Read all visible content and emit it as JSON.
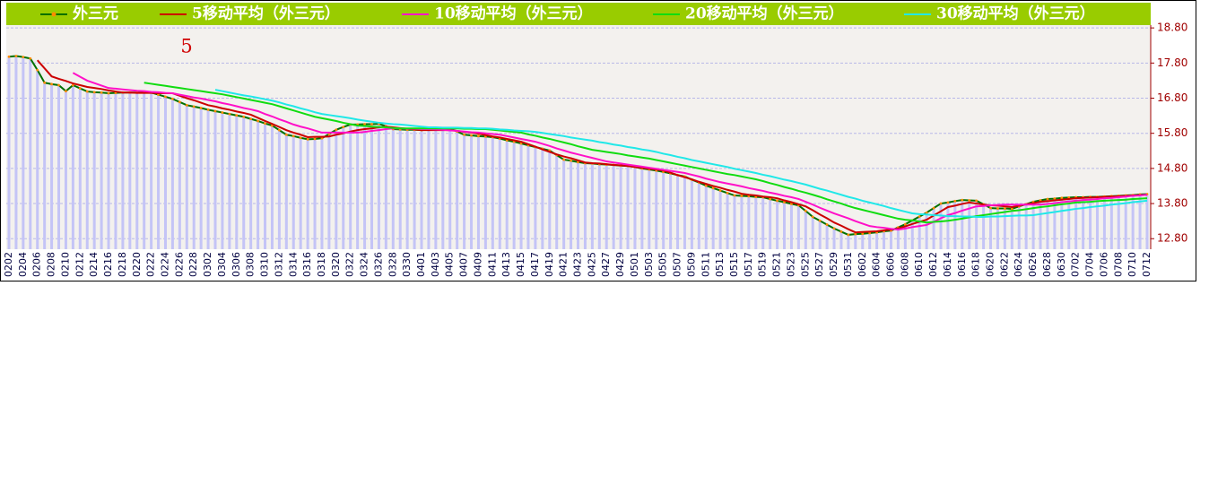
{
  "chart_data": {
    "type": "line",
    "annotation": "5",
    "categories": [
      "0202",
      null,
      "0204",
      null,
      "0206",
      null,
      "0208",
      null,
      "0210",
      null,
      "0212",
      null,
      "0214",
      null,
      "0216",
      null,
      "0218",
      null,
      "0220",
      null,
      "0222",
      null,
      "0224",
      null,
      "0226",
      null,
      "0228",
      null,
      "0302",
      null,
      "0304",
      null,
      "0306",
      null,
      "0308",
      null,
      "0310",
      null,
      "0312",
      null,
      "0314",
      null,
      "0316",
      null,
      "0318",
      null,
      "0320",
      null,
      "0322",
      null,
      "0324",
      null,
      "0326",
      null,
      "0328",
      null,
      "0330",
      null,
      "0401",
      null,
      "0403",
      null,
      "0405",
      null,
      "0407",
      null,
      "0409",
      null,
      "0411",
      null,
      "0413",
      null,
      "0415",
      null,
      "0417",
      null,
      "0419",
      null,
      "0421",
      null,
      "0423",
      null,
      "0425",
      null,
      "0427",
      null,
      "0429",
      null,
      "0501",
      null,
      "0503",
      null,
      "0505",
      null,
      "0507",
      null,
      "0509",
      null,
      "0511",
      null,
      "0513",
      null,
      "0515",
      null,
      "0517",
      null,
      "0519",
      null,
      "0521",
      null,
      "0523",
      null,
      "0525",
      null,
      "0527",
      null,
      "0529",
      null,
      "0531",
      null,
      "0602",
      null,
      "0604",
      null,
      "0606",
      null,
      "0608",
      null,
      "0610",
      null,
      "0612",
      null,
      "0614",
      null,
      "0616",
      null,
      "0618",
      null,
      "0620",
      null,
      "0622",
      null,
      "0624",
      null,
      "0626",
      null,
      "0628",
      null,
      "0630",
      null,
      "0702",
      null,
      "0704",
      null,
      "0706",
      null,
      "0708",
      null,
      "0710",
      null,
      "0712"
    ],
    "series": [
      {
        "name": "外三元",
        "color": "#007000",
        "marker_color": "#ff8c00",
        "bar_color": "#c4c4f6",
        "values": [
          17.98,
          18.0,
          17.97,
          17.93,
          17.6,
          17.24,
          17.2,
          17.17,
          17.0,
          17.17,
          17.08,
          16.99,
          16.97,
          16.96,
          16.94,
          16.95,
          16.96,
          16.96,
          16.96,
          16.96,
          16.96,
          16.9,
          16.84,
          16.78,
          16.69,
          16.6,
          16.56,
          16.52,
          16.47,
          16.43,
          16.39,
          16.35,
          16.31,
          16.27,
          16.21,
          16.15,
          16.08,
          16.02,
          15.89,
          15.76,
          15.72,
          15.67,
          15.63,
          15.64,
          15.66,
          15.78,
          15.9,
          15.98,
          16.05,
          16.05,
          16.06,
          16.06,
          16.07,
          16.0,
          15.92,
          15.91,
          15.9,
          15.9,
          15.89,
          15.9,
          15.91,
          15.93,
          15.94,
          15.85,
          15.76,
          15.74,
          15.72,
          15.71,
          15.69,
          15.65,
          15.6,
          15.56,
          15.51,
          15.46,
          15.41,
          15.36,
          15.31,
          15.18,
          15.05,
          15.02,
          14.98,
          14.95,
          14.94,
          14.92,
          14.91,
          14.9,
          14.88,
          14.87,
          14.84,
          14.8,
          14.77,
          14.74,
          14.7,
          14.66,
          14.61,
          14.57,
          14.48,
          14.4,
          14.31,
          14.24,
          14.17,
          14.1,
          14.03,
          14.02,
          14.01,
          13.99,
          13.98,
          13.93,
          13.88,
          13.84,
          13.79,
          13.75,
          13.59,
          13.42,
          13.31,
          13.2,
          13.09,
          13.0,
          12.91,
          12.93,
          12.94,
          12.96,
          12.98,
          13.01,
          13.03,
          13.12,
          13.21,
          13.32,
          13.43,
          13.54,
          13.67,
          13.8,
          13.83,
          13.87,
          13.9,
          13.89,
          13.88,
          13.78,
          13.67,
          13.66,
          13.66,
          13.65,
          13.72,
          13.78,
          13.85,
          13.89,
          13.93,
          13.94,
          13.96,
          13.97,
          13.98,
          13.98,
          13.99,
          13.99,
          14.0,
          14.01,
          14.02,
          14.03,
          14.04,
          14.06,
          14.07
        ]
      },
      {
        "name": "5移动平均（外三元）",
        "color": "#cc0000",
        "values": [
          null,
          null,
          null,
          null,
          17.88,
          17.65,
          17.42,
          17.35,
          17.29,
          17.22,
          17.17,
          17.12,
          17.09,
          17.06,
          17.02,
          16.99,
          16.96,
          16.96,
          16.95,
          16.95,
          16.95,
          16.94,
          16.94,
          16.94,
          16.87,
          16.8,
          16.74,
          16.67,
          16.6,
          16.56,
          16.51,
          16.47,
          16.42,
          16.38,
          16.33,
          16.24,
          16.15,
          16.07,
          15.98,
          15.89,
          15.82,
          15.76,
          15.69,
          15.7,
          15.7,
          15.71,
          15.76,
          15.8,
          15.85,
          15.89,
          15.92,
          15.94,
          15.97,
          15.99,
          15.97,
          15.95,
          15.93,
          15.91,
          15.89,
          15.89,
          15.89,
          15.89,
          15.89,
          15.87,
          15.84,
          15.82,
          15.79,
          15.75,
          15.71,
          15.68,
          15.64,
          15.6,
          15.56,
          15.49,
          15.42,
          15.34,
          15.27,
          15.2,
          15.14,
          15.09,
          15.03,
          14.97,
          14.95,
          14.94,
          14.92,
          14.9,
          14.89,
          14.87,
          14.84,
          14.82,
          14.79,
          14.77,
          14.74,
          14.68,
          14.61,
          14.55,
          14.49,
          14.42,
          14.36,
          14.3,
          14.25,
          14.19,
          14.14,
          14.08,
          14.05,
          14.03,
          14.0,
          13.98,
          13.95,
          13.89,
          13.84,
          13.78,
          13.72,
          13.61,
          13.49,
          13.38,
          13.26,
          13.17,
          13.07,
          12.98,
          12.99,
          13.0,
          13.01,
          13.04,
          13.06,
          13.09,
          13.15,
          13.22,
          13.28,
          13.34,
          13.46,
          13.58,
          13.7,
          13.74,
          13.79,
          13.83,
          13.8,
          13.77,
          13.75,
          13.74,
          13.72,
          13.7,
          13.74,
          13.78,
          13.81,
          13.85,
          13.87,
          13.89,
          13.91,
          13.93,
          13.95,
          13.96,
          13.97,
          13.98,
          13.99,
          14.0,
          14.01,
          14.02,
          14.03,
          14.04,
          14.05
        ]
      },
      {
        "name": "10移动平均（外三元）",
        "color": "#ff10c8",
        "values": [
          null,
          null,
          null,
          null,
          null,
          null,
          null,
          null,
          null,
          17.52,
          17.41,
          17.3,
          17.23,
          17.16,
          17.09,
          17.07,
          17.05,
          17.03,
          17.01,
          17.0,
          16.98,
          16.97,
          16.95,
          16.94,
          16.9,
          16.86,
          16.82,
          16.79,
          16.75,
          16.71,
          16.66,
          16.62,
          16.57,
          16.52,
          16.48,
          16.43,
          16.35,
          16.28,
          16.2,
          16.13,
          16.05,
          15.99,
          15.94,
          15.88,
          15.82,
          15.82,
          15.82,
          15.82,
          15.82,
          15.82,
          15.84,
          15.87,
          15.89,
          15.92,
          15.94,
          15.94,
          15.93,
          15.93,
          15.92,
          15.92,
          15.91,
          15.9,
          15.88,
          15.87,
          15.85,
          15.83,
          15.82,
          15.8,
          15.78,
          15.76,
          15.72,
          15.68,
          15.64,
          15.6,
          15.56,
          15.5,
          15.44,
          15.37,
          15.31,
          15.25,
          15.2,
          15.15,
          15.1,
          15.05,
          15.0,
          14.97,
          14.94,
          14.91,
          14.88,
          14.85,
          14.82,
          14.79,
          14.76,
          14.73,
          14.7,
          14.67,
          14.62,
          14.57,
          14.51,
          14.46,
          14.41,
          14.37,
          14.33,
          14.29,
          14.24,
          14.2,
          14.16,
          14.11,
          14.07,
          14.02,
          13.98,
          13.93,
          13.85,
          13.77,
          13.68,
          13.6,
          13.52,
          13.45,
          13.38,
          13.3,
          13.23,
          13.16,
          13.13,
          13.11,
          13.08,
          13.06,
          13.09,
          13.13,
          13.16,
          13.19,
          13.28,
          13.38,
          13.47,
          13.53,
          13.6,
          13.66,
          13.72,
          13.73,
          13.75,
          13.76,
          13.77,
          13.77,
          13.77,
          13.77,
          13.77,
          13.77,
          13.79,
          13.81,
          13.84,
          13.86,
          13.88,
          13.9,
          13.91,
          13.93,
          13.95,
          13.96,
          13.98,
          14.0,
          14.02,
          14.03,
          14.05
        ]
      },
      {
        "name": "20移动平均（外三元）",
        "color": "#10dc10",
        "values": [
          null,
          null,
          null,
          null,
          null,
          null,
          null,
          null,
          null,
          null,
          null,
          null,
          null,
          null,
          null,
          null,
          null,
          null,
          null,
          17.24,
          17.21,
          17.18,
          17.15,
          17.12,
          17.09,
          17.06,
          17.03,
          17.0,
          16.97,
          16.94,
          16.91,
          16.87,
          16.83,
          16.79,
          16.75,
          16.71,
          16.67,
          16.63,
          16.57,
          16.51,
          16.45,
          16.39,
          16.33,
          16.27,
          16.23,
          16.19,
          16.15,
          16.1,
          16.06,
          16.02,
          16.01,
          15.99,
          15.98,
          15.97,
          15.95,
          15.94,
          15.94,
          15.94,
          15.94,
          15.94,
          15.94,
          15.94,
          15.94,
          15.94,
          15.93,
          15.93,
          15.92,
          15.92,
          15.9,
          15.88,
          15.86,
          15.84,
          15.82,
          15.77,
          15.73,
          15.68,
          15.64,
          15.59,
          15.54,
          15.49,
          15.43,
          15.38,
          15.33,
          15.3,
          15.27,
          15.24,
          15.21,
          15.17,
          15.14,
          15.11,
          15.08,
          15.04,
          15.0,
          14.96,
          14.92,
          14.88,
          14.84,
          14.8,
          14.76,
          14.72,
          14.68,
          14.64,
          14.61,
          14.57,
          14.53,
          14.49,
          14.44,
          14.38,
          14.33,
          14.27,
          14.22,
          14.16,
          14.11,
          14.05,
          13.99,
          13.92,
          13.86,
          13.8,
          13.73,
          13.67,
          13.62,
          13.57,
          13.52,
          13.47,
          13.42,
          13.37,
          13.34,
          13.32,
          13.29,
          13.26,
          13.28,
          13.29,
          13.31,
          13.34,
          13.37,
          13.41,
          13.44,
          13.47,
          13.5,
          13.53,
          13.56,
          13.59,
          13.61,
          13.64,
          13.67,
          13.7,
          13.72,
          13.75,
          13.78,
          13.8,
          13.83,
          13.84,
          13.85,
          13.87,
          13.88,
          13.89,
          13.9,
          13.91,
          13.93,
          13.94,
          13.95
        ]
      },
      {
        "name": "30移动平均（外三元）",
        "color": "#20e8e8",
        "values": [
          null,
          null,
          null,
          null,
          null,
          null,
          null,
          null,
          null,
          null,
          null,
          null,
          null,
          null,
          null,
          null,
          null,
          null,
          null,
          null,
          null,
          null,
          null,
          null,
          null,
          null,
          null,
          null,
          null,
          17.04,
          17.0,
          16.96,
          16.92,
          16.88,
          16.85,
          16.81,
          16.77,
          16.73,
          16.68,
          16.62,
          16.57,
          16.51,
          16.46,
          16.4,
          16.35,
          16.32,
          16.29,
          16.26,
          16.23,
          16.19,
          16.16,
          16.13,
          16.1,
          16.08,
          16.06,
          16.05,
          16.03,
          16.01,
          15.99,
          15.97,
          15.97,
          15.96,
          15.96,
          15.96,
          15.95,
          15.95,
          15.94,
          15.94,
          15.93,
          15.91,
          15.9,
          15.88,
          15.87,
          15.86,
          15.84,
          15.81,
          15.78,
          15.75,
          15.72,
          15.68,
          15.65,
          15.62,
          15.59,
          15.55,
          15.52,
          15.48,
          15.45,
          15.41,
          15.38,
          15.34,
          15.31,
          15.27,
          15.22,
          15.18,
          15.13,
          15.09,
          15.04,
          15.0,
          14.96,
          14.92,
          14.88,
          14.84,
          14.79,
          14.75,
          14.71,
          14.67,
          14.62,
          14.58,
          14.53,
          14.48,
          14.44,
          14.39,
          14.34,
          14.28,
          14.22,
          14.17,
          14.11,
          14.05,
          13.99,
          13.94,
          13.88,
          13.83,
          13.78,
          13.73,
          13.67,
          13.62,
          13.57,
          13.52,
          13.5,
          13.49,
          13.47,
          13.46,
          13.44,
          13.44,
          13.43,
          13.43,
          13.42,
          13.42,
          13.43,
          13.43,
          13.44,
          13.45,
          13.46,
          13.46,
          13.47,
          13.5,
          13.53,
          13.56,
          13.59,
          13.62,
          13.65,
          13.67,
          13.7,
          13.72,
          13.74,
          13.77,
          13.79,
          13.81,
          13.84,
          13.86,
          13.88
        ]
      }
    ],
    "ylim": [
      12.5,
      18.88
    ],
    "yticks": [
      {
        "value": 12.8,
        "label": "12.80"
      },
      {
        "value": 13.8,
        "label": "13.80"
      },
      {
        "value": 14.8,
        "label": "14.80"
      },
      {
        "value": 15.8,
        "label": "15.80"
      },
      {
        "value": 16.8,
        "label": "16.80"
      },
      {
        "value": 17.8,
        "label": "17.80"
      },
      {
        "value": 18.8,
        "label": "18.80"
      }
    ],
    "y_axis_side": "right",
    "grid": true,
    "legend_position": "top",
    "legend_background": "#99cc00"
  }
}
